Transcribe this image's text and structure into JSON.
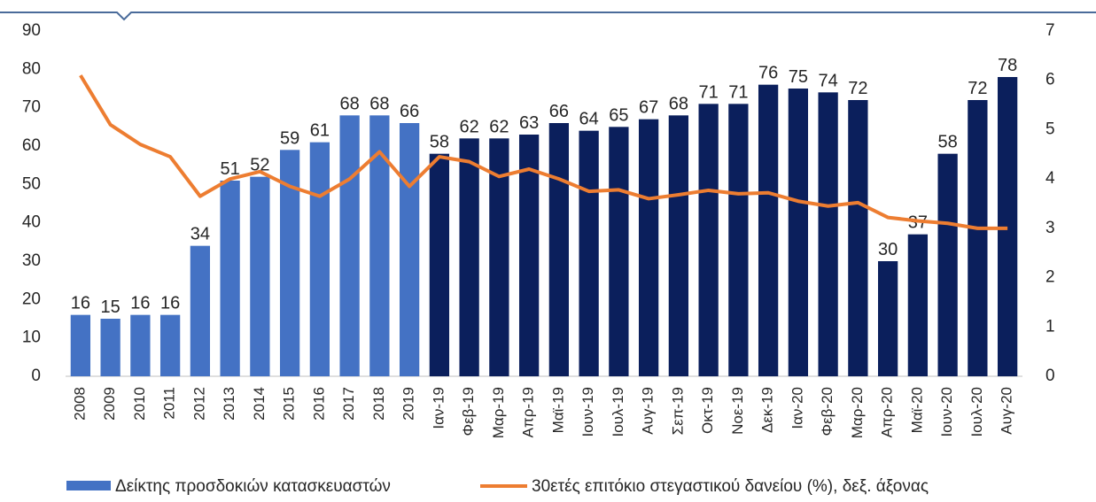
{
  "chart_data": {
    "type": "bar-line",
    "categories": [
      "2008",
      "2009",
      "2010",
      "2011",
      "2012",
      "2013",
      "2014",
      "2015",
      "2016",
      "2017",
      "2018",
      "2019",
      "Ιαν-19",
      "Φεβ-19",
      "Μαρ-19",
      "Απρ-19",
      "Μαϊ-19",
      "Ιουν-19",
      "Ιουλ-19",
      "Αυγ-19",
      "Σεπ-19",
      "Οκτ-19",
      "Νοε-19",
      "Δεκ-19",
      "Ιαν-20",
      "Φεβ-20",
      "Μαρ-20",
      "Απρ-20",
      "Μαϊ-20",
      "Ιουν-20",
      "Ιουλ-20",
      "Αυγ-20"
    ],
    "series": [
      {
        "name": "Δείκτης προσδοκιών κατασκευαστών",
        "type": "bar",
        "color": "#4472c4",
        "colors": [
          "#4472c4",
          "#4472c4",
          "#4472c4",
          "#4472c4",
          "#4472c4",
          "#4472c4",
          "#4472c4",
          "#4472c4",
          "#4472c4",
          "#4472c4",
          "#4472c4",
          "#4472c4",
          "#0b1f5c",
          "#0b1f5c",
          "#0b1f5c",
          "#0b1f5c",
          "#0b1f5c",
          "#0b1f5c",
          "#0b1f5c",
          "#0b1f5c",
          "#0b1f5c",
          "#0b1f5c",
          "#0b1f5c",
          "#0b1f5c",
          "#0b1f5c",
          "#0b1f5c",
          "#0b1f5c",
          "#0b1f5c",
          "#0b1f5c",
          "#0b1f5c",
          "#0b1f5c",
          "#0b1f5c"
        ],
        "values": [
          16,
          15,
          16,
          16,
          34,
          51,
          52,
          59,
          61,
          68,
          68,
          66,
          58,
          62,
          62,
          63,
          66,
          64,
          65,
          67,
          68,
          71,
          71,
          76,
          75,
          74,
          72,
          30,
          37,
          58,
          72,
          78
        ]
      },
      {
        "name": "30ετές επιτόκιο στεγαστικού δανείου (%), δεξ. άξονας",
        "type": "line",
        "axis": "y2",
        "color": "#ed7d31",
        "values": [
          6.1,
          5.1,
          4.7,
          4.45,
          3.65,
          4.0,
          4.15,
          3.85,
          3.65,
          4.0,
          4.55,
          3.85,
          4.45,
          4.35,
          4.05,
          4.2,
          4.0,
          3.75,
          3.78,
          3.6,
          3.68,
          3.77,
          3.7,
          3.72,
          3.55,
          3.45,
          3.52,
          3.22,
          3.15,
          3.1,
          3.0,
          3.0
        ]
      }
    ],
    "ylim": [
      0,
      90
    ],
    "yticks": [
      0,
      10,
      20,
      30,
      40,
      50,
      60,
      70,
      80,
      90
    ],
    "y2lim": [
      0,
      7
    ],
    "y2ticks": [
      0,
      1,
      2,
      3,
      4,
      5,
      6,
      7
    ],
    "legend": "bottom"
  }
}
